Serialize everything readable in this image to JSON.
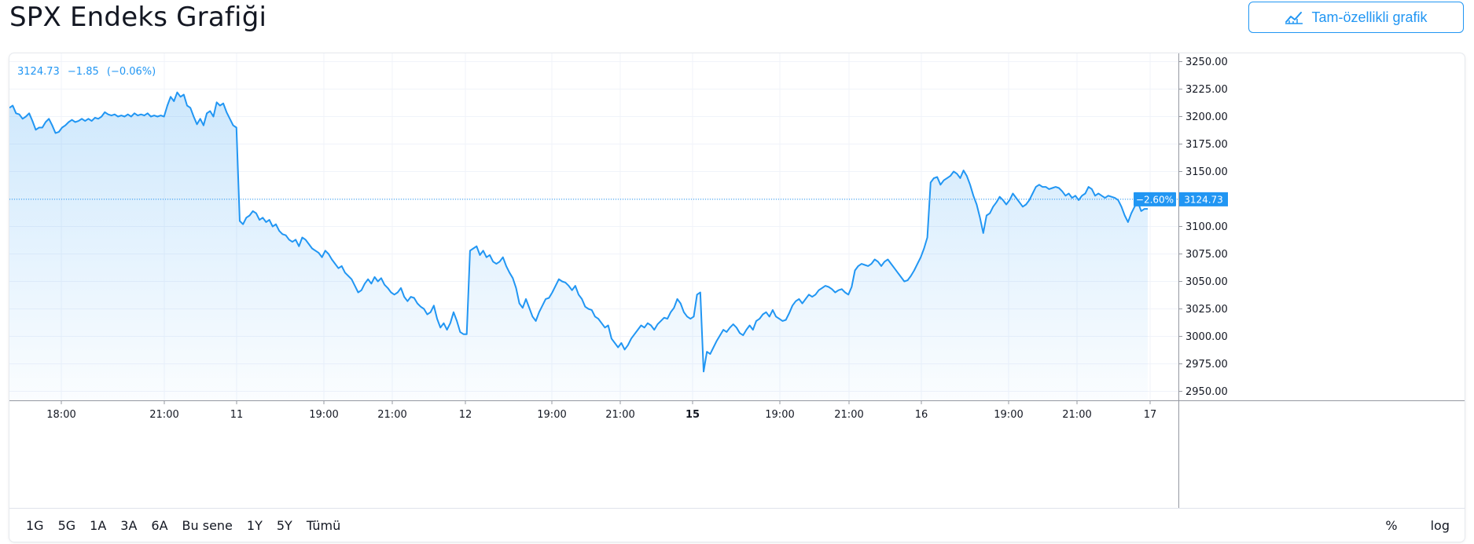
{
  "header": {
    "title": "SPX Endeks Grafiği",
    "full_chart_label": "Tam-özellikli grafik",
    "full_chart_icon": "chart-line-icon"
  },
  "readout": {
    "price": "3124.73",
    "change": "−1.85",
    "change_pct": "(−0.06%)"
  },
  "range_selector": {
    "options": [
      "1G",
      "5G",
      "1A",
      "3A",
      "6A",
      "Bu sene",
      "1Y",
      "5Y",
      "Tümü"
    ],
    "toggles": [
      "%",
      "log"
    ]
  },
  "colors": {
    "accent": "#2196f3",
    "line": "#2196f3",
    "grid": "#f0f3fa",
    "axis_text": "#131722"
  },
  "chart_data": {
    "type": "area",
    "title": "",
    "xlabel": "",
    "ylabel": "",
    "ylim": [
      2940,
      3260
    ],
    "y_ticks": [
      2950,
      2975,
      3000,
      3025,
      3050,
      3075,
      3100,
      3125,
      3150,
      3175,
      3200,
      3225,
      3250
    ],
    "y_tick_labels": [
      "2950.00",
      "2975.00",
      "3000.00",
      "3025.00",
      "3050.00",
      "3075.00",
      "3100.00",
      "3125.00",
      "3150.00",
      "3175.00",
      "3200.00",
      "3225.00",
      "3250.00"
    ],
    "x_tick_labels": [
      {
        "label": "18:00",
        "bold": false
      },
      {
        "label": "21:00",
        "bold": false
      },
      {
        "label": "11",
        "bold": false
      },
      {
        "label": "19:00",
        "bold": false
      },
      {
        "label": "21:00",
        "bold": false
      },
      {
        "label": "12",
        "bold": false
      },
      {
        "label": "19:00",
        "bold": false
      },
      {
        "label": "21:00",
        "bold": false
      },
      {
        "label": "15",
        "bold": true
      },
      {
        "label": "19:00",
        "bold": false
      },
      {
        "label": "21:00",
        "bold": false
      },
      {
        "label": "16",
        "bold": false
      },
      {
        "label": "19:00",
        "bold": false
      },
      {
        "label": "21:00",
        "bold": false
      },
      {
        "label": "17",
        "bold": false
      }
    ],
    "current_value": 3124.73,
    "current_label": "3124.73",
    "current_change_label": "−2.60%",
    "grid": true,
    "series": [
      {
        "values": [
          3208,
          3210,
          3203,
          3202,
          3198,
          3200,
          3203,
          3196,
          3188,
          3190,
          3190,
          3195,
          3198,
          3192,
          3185,
          3186,
          3190,
          3192,
          3195,
          3197,
          3195,
          3196,
          3198,
          3196,
          3198,
          3196,
          3199,
          3198,
          3200,
          3204,
          3202,
          3201,
          3202,
          3200,
          3201,
          3200,
          3202,
          3200,
          3203,
          3201,
          3202,
          3201,
          3203,
          3200,
          3201,
          3200,
          3201,
          3200,
          3210,
          3218,
          3214,
          3222,
          3218,
          3220,
          3210,
          3208,
          3200,
          3193,
          3198,
          3192,
          3203,
          3205,
          3200,
          3213,
          3210,
          3212,
          3204,
          3198,
          3192,
          3190,
          3105,
          3102,
          3108,
          3110,
          3114,
          3112,
          3106,
          3108,
          3104,
          3106,
          3100,
          3102,
          3096,
          3093,
          3092,
          3088,
          3086,
          3088,
          3082,
          3090,
          3088,
          3084,
          3080,
          3078,
          3076,
          3072,
          3078,
          3075,
          3070,
          3066,
          3062,
          3064,
          3058,
          3055,
          3052,
          3046,
          3040,
          3042,
          3048,
          3052,
          3048,
          3054,
          3050,
          3053,
          3047,
          3044,
          3040,
          3038,
          3040,
          3044,
          3036,
          3032,
          3036,
          3035,
          3030,
          3027,
          3025,
          3020,
          3022,
          3028,
          3016,
          3008,
          3012,
          3006,
          3012,
          3022,
          3014,
          3004,
          3002,
          3002,
          3078,
          3080,
          3082,
          3074,
          3078,
          3072,
          3074,
          3068,
          3066,
          3068,
          3072,
          3064,
          3058,
          3053,
          3044,
          3030,
          3026,
          3034,
          3026,
          3018,
          3014,
          3022,
          3028,
          3034,
          3035,
          3040,
          3046,
          3052,
          3050,
          3049,
          3046,
          3042,
          3046,
          3038,
          3034,
          3027,
          3025,
          3024,
          3018,
          3016,
          3012,
          3008,
          3010,
          2998,
          2994,
          2990,
          2994,
          2988,
          2992,
          2998,
          3002,
          3006,
          3010,
          3008,
          3012,
          3010,
          3006,
          3011,
          3014,
          3017,
          3016,
          3022,
          3026,
          3034,
          3030,
          3022,
          3018,
          3016,
          3018,
          3038,
          3040,
          2968,
          2986,
          2984,
          2990,
          2996,
          3001,
          3006,
          3004,
          3008,
          3011,
          3008,
          3003,
          3001,
          3006,
          3010,
          3006,
          3014,
          3016,
          3020,
          3022,
          3018,
          3024,
          3018,
          3016,
          3014,
          3015,
          3021,
          3028,
          3032,
          3034,
          3030,
          3034,
          3038,
          3036,
          3038,
          3042,
          3044,
          3046,
          3045,
          3043,
          3040,
          3042,
          3043,
          3040,
          3038,
          3045,
          3060,
          3064,
          3066,
          3065,
          3064,
          3066,
          3070,
          3068,
          3064,
          3068,
          3070,
          3066,
          3062,
          3058,
          3054,
          3050,
          3051,
          3055,
          3060,
          3066,
          3072,
          3080,
          3090,
          3140,
          3144,
          3145,
          3138,
          3142,
          3144,
          3146,
          3150,
          3148,
          3144,
          3151,
          3146,
          3138,
          3128,
          3120,
          3108,
          3094,
          3110,
          3112,
          3118,
          3122,
          3127,
          3124,
          3120,
          3124,
          3130,
          3126,
          3122,
          3118,
          3120,
          3124,
          3130,
          3136,
          3138,
          3136,
          3136,
          3134,
          3135,
          3136,
          3135,
          3132,
          3128,
          3130,
          3126,
          3128,
          3124,
          3128,
          3130,
          3136,
          3134,
          3128,
          3130,
          3128,
          3126,
          3128,
          3127,
          3126,
          3124,
          3118,
          3110,
          3104,
          3112,
          3118,
          3122,
          3114,
          3116,
          3116
        ]
      }
    ]
  }
}
